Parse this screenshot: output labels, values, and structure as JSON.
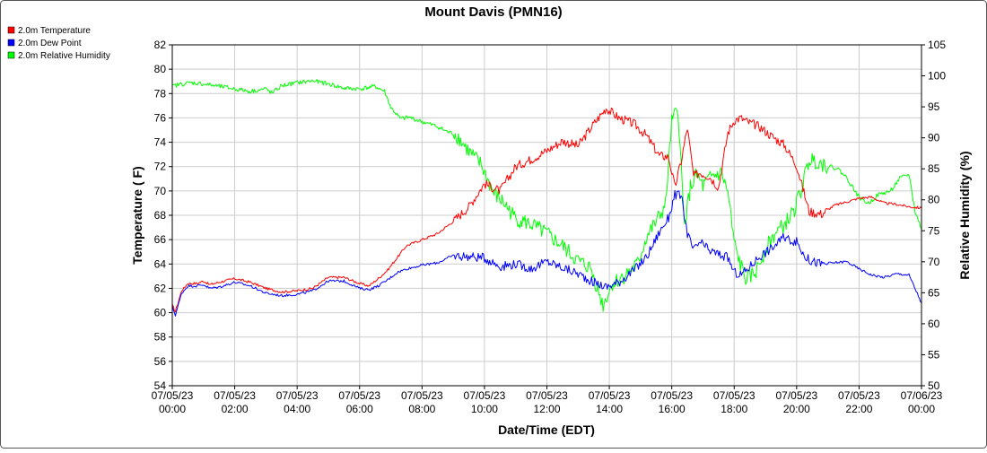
{
  "chart_data": {
    "type": "line",
    "title": "Mount Davis (PMN16)",
    "xlabel": "Date/Time (EDT)",
    "ylabel_left": "Temperature ( F)",
    "ylabel_right": "Relative Humidity (%)",
    "ylim_left": [
      54,
      82
    ],
    "ylim_right": [
      50,
      105
    ],
    "xlim_hours": [
      0,
      24
    ],
    "yticks_left": [
      54,
      56,
      58,
      60,
      62,
      64,
      66,
      68,
      70,
      72,
      74,
      76,
      78,
      80,
      82
    ],
    "yticks_right": [
      50,
      55,
      60,
      65,
      70,
      75,
      80,
      85,
      90,
      95,
      100,
      105
    ],
    "x_ticks": [
      {
        "h": 0,
        "date": "07/05/23",
        "time": "00:00"
      },
      {
        "h": 2,
        "date": "07/05/23",
        "time": "02:00"
      },
      {
        "h": 4,
        "date": "07/05/23",
        "time": "04:00"
      },
      {
        "h": 6,
        "date": "07/05/23",
        "time": "06:00"
      },
      {
        "h": 8,
        "date": "07/05/23",
        "time": "08:00"
      },
      {
        "h": 10,
        "date": "07/05/23",
        "time": "10:00"
      },
      {
        "h": 12,
        "date": "07/05/23",
        "time": "12:00"
      },
      {
        "h": 14,
        "date": "07/05/23",
        "time": "14:00"
      },
      {
        "h": 16,
        "date": "07/05/23",
        "time": "16:00"
      },
      {
        "h": 18,
        "date": "07/05/23",
        "time": "18:00"
      },
      {
        "h": 20,
        "date": "07/05/23",
        "time": "20:00"
      },
      {
        "h": 22,
        "date": "07/05/23",
        "time": "22:00"
      },
      {
        "h": 24,
        "date": "07/06/23",
        "time": "00:00"
      }
    ],
    "grid": true,
    "legend_position": "top-left",
    "series": [
      {
        "name": "2.0m Temperature",
        "color": "#ff0000",
        "axis": "left",
        "x": [
          0,
          0.1,
          0.3,
          0.5,
          0.8,
          1,
          1.2,
          1.5,
          2,
          2.5,
          3,
          3.5,
          4,
          4.5,
          5,
          5.5,
          6,
          6.3,
          6.6,
          6.9,
          7.2,
          7.5,
          8,
          8.5,
          9,
          9.5,
          10,
          10.5,
          11,
          11.5,
          12,
          12.5,
          13,
          13.5,
          13.9,
          14.3,
          14.8,
          15.2,
          15.6,
          15.9,
          16.1,
          16.3,
          16.5,
          16.7,
          16.9,
          17.2,
          17.5,
          17.8,
          18,
          18.2,
          18.4,
          18.8,
          19.2,
          19.6,
          20,
          20.2,
          20.4,
          20.8,
          21.2,
          21.6,
          22,
          22.4,
          22.8,
          23.2,
          23.6,
          24
        ],
        "values": [
          60.6,
          60.1,
          61.8,
          62.4,
          62.4,
          62.6,
          62.3,
          62.5,
          62.8,
          62.5,
          62.0,
          61.7,
          61.8,
          62.0,
          62.9,
          62.9,
          62.4,
          62.2,
          62.8,
          63.5,
          64.5,
          65.5,
          66.0,
          66.5,
          67.5,
          68.7,
          70.6,
          70.0,
          72.0,
          72.6,
          73.3,
          74.1,
          73.7,
          75.5,
          76.8,
          76.0,
          75.5,
          74.5,
          72.9,
          72.8,
          70.3,
          72.4,
          75.2,
          71.2,
          71.5,
          71.2,
          70.3,
          74.8,
          75.8,
          76.0,
          75.7,
          75.3,
          74.5,
          73.8,
          72.1,
          70.2,
          68.3,
          68.1,
          68.8,
          69.1,
          69.4,
          69.5,
          69.0,
          68.9,
          68.7,
          68.6
        ]
      },
      {
        "name": "2.0m Dew Point",
        "color": "#0000ff",
        "axis": "left",
        "x": [
          0,
          0.1,
          0.3,
          0.5,
          0.8,
          1,
          1.2,
          1.5,
          2,
          2.5,
          3,
          3.5,
          4,
          4.5,
          5,
          5.5,
          6,
          6.3,
          6.6,
          6.9,
          7.2,
          7.5,
          8,
          8.5,
          9,
          9.5,
          10,
          10.5,
          11,
          11.5,
          12,
          12.5,
          13,
          13.5,
          13.9,
          14.3,
          14.8,
          15.2,
          15.6,
          15.9,
          16.1,
          16.3,
          16.5,
          16.7,
          16.9,
          17.2,
          17.5,
          17.8,
          18,
          18.2,
          18.4,
          18.8,
          19.2,
          19.6,
          20,
          20.2,
          20.4,
          20.8,
          21.2,
          21.6,
          22,
          22.4,
          22.8,
          23.2,
          23.6,
          24
        ],
        "values": [
          60.5,
          59.8,
          61.6,
          62.2,
          62.2,
          62.3,
          62.0,
          62.1,
          62.5,
          62.2,
          61.6,
          61.4,
          61.5,
          61.8,
          62.6,
          62.6,
          62.0,
          61.9,
          62.2,
          62.7,
          63.3,
          63.6,
          63.9,
          64.1,
          64.7,
          64.6,
          64.5,
          63.8,
          64.0,
          63.6,
          64.2,
          63.7,
          63.2,
          62.5,
          62.1,
          62.5,
          63.5,
          64.6,
          66.6,
          67.8,
          69.7,
          69.6,
          66.5,
          65.1,
          65.8,
          65.1,
          64.8,
          64.5,
          63.3,
          63.1,
          63.5,
          64.6,
          65.3,
          66.2,
          65.8,
          64.9,
          64.3,
          64.0,
          64.1,
          64.2,
          63.6,
          63.1,
          62.9,
          63.2,
          63.1,
          60.8
        ]
      },
      {
        "name": "2.0m Relative Humidity",
        "color": "#00ff00",
        "axis": "right",
        "x": [
          0,
          0.2,
          0.6,
          1,
          1.5,
          2,
          2.5,
          3,
          3.2,
          3.5,
          4,
          4.5,
          5,
          5.5,
          6,
          6.5,
          6.8,
          7,
          7.3,
          7.6,
          8,
          8.5,
          8.8,
          9.1,
          9.5,
          9.9,
          10.3,
          10.6,
          11,
          11.5,
          12,
          12.5,
          13,
          13.4,
          13.8,
          14.1,
          14.5,
          14.9,
          15.2,
          15.5,
          15.8,
          16,
          16.2,
          16.4,
          16.6,
          16.8,
          17,
          17.3,
          17.6,
          17.8,
          18,
          18.2,
          18.4,
          18.7,
          19,
          19.3,
          19.6,
          19.9,
          20.2,
          20.4,
          20.7,
          21,
          21.3,
          21.6,
          22,
          22.3,
          22.6,
          23,
          23.3,
          23.6,
          23.8,
          24
        ],
        "values": [
          98.3,
          98.6,
          98.9,
          98.7,
          98.3,
          97.9,
          97.5,
          97.9,
          97.2,
          98.4,
          98.9,
          99.2,
          98.7,
          98.0,
          97.9,
          98.3,
          97.5,
          94.9,
          93.1,
          93.3,
          92.6,
          91.8,
          91.0,
          90.5,
          87.8,
          85.6,
          81.0,
          79.6,
          77.0,
          76.0,
          74.5,
          72.5,
          70.1,
          69.0,
          63.0,
          66.5,
          67.8,
          69.6,
          74.1,
          76.4,
          79.1,
          92.5,
          94.7,
          76.0,
          82.0,
          84.0,
          82.2,
          83.8,
          84.3,
          81.0,
          73.0,
          69.5,
          67.0,
          68.5,
          72.0,
          74.5,
          75.9,
          78.0,
          82.4,
          86.5,
          86.2,
          85.4,
          85.1,
          83.6,
          80.4,
          79.4,
          80.8,
          81.4,
          83.4,
          84.1,
          78.0,
          75.3
        ]
      }
    ]
  }
}
